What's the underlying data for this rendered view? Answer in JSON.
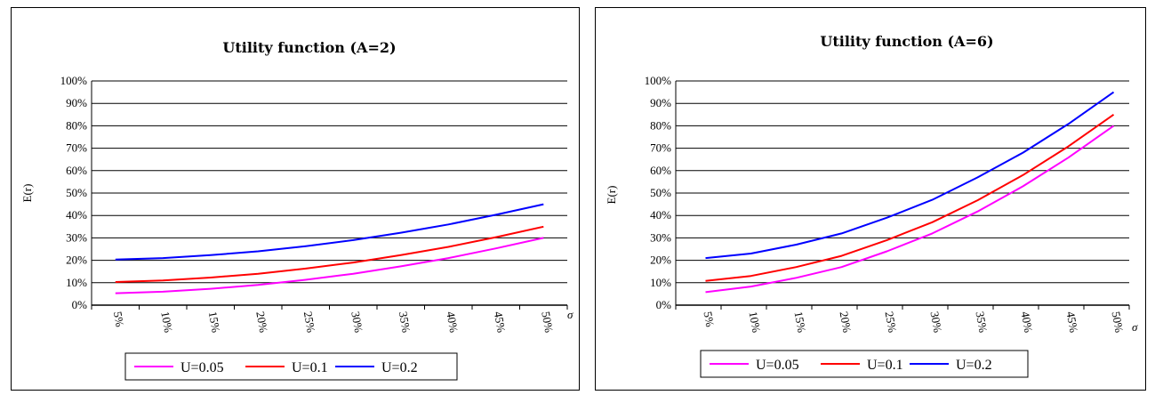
{
  "chart_data": [
    {
      "type": "line",
      "title": "Utility function (A=2)",
      "xlabel": "σ",
      "ylabel": "E(r)",
      "categories": [
        "5%",
        "10%",
        "15%",
        "20%",
        "25%",
        "30%",
        "35%",
        "40%",
        "45%",
        "50%"
      ],
      "yticks": [
        "0%",
        "10%",
        "20%",
        "30%",
        "40%",
        "50%",
        "60%",
        "70%",
        "80%",
        "90%",
        "100%"
      ],
      "ylim": [
        0,
        100
      ],
      "grid": true,
      "legend_position": "bottom",
      "series": [
        {
          "name": "U=0.05",
          "color": "#ff00ff",
          "values": [
            5.3,
            6.0,
            7.3,
            9.0,
            11.3,
            14.0,
            17.3,
            21.0,
            25.3,
            30.0
          ]
        },
        {
          "name": "U=0.1",
          "color": "#ff0000",
          "values": [
            10.3,
            11.0,
            12.3,
            14.0,
            16.3,
            19.0,
            22.3,
            26.0,
            30.3,
            35.0
          ]
        },
        {
          "name": "U=0.2",
          "color": "#0000ff",
          "values": [
            20.3,
            21.0,
            22.3,
            24.0,
            26.3,
            29.0,
            32.3,
            36.0,
            40.3,
            45.0
          ]
        }
      ]
    },
    {
      "type": "line",
      "title": "Utility function (A=6)",
      "xlabel": "σ",
      "ylabel": "E(r)",
      "categories": [
        "5%",
        "10%",
        "15%",
        "20%",
        "25%",
        "30%",
        "35%",
        "40%",
        "45%",
        "50%"
      ],
      "yticks": [
        "0%",
        "10%",
        "20%",
        "30%",
        "40%",
        "50%",
        "60%",
        "70%",
        "80%",
        "90%",
        "100%"
      ],
      "ylim": [
        0,
        100
      ],
      "grid": true,
      "legend_position": "bottom",
      "series": [
        {
          "name": "U=0.05",
          "color": "#ff00ff",
          "values": [
            5.8,
            8.3,
            12.2,
            17.0,
            24.0,
            32.0,
            41.8,
            53.0,
            65.8,
            80.0
          ]
        },
        {
          "name": "U=0.1",
          "color": "#ff0000",
          "values": [
            10.8,
            13.0,
            17.0,
            22.0,
            29.0,
            37.0,
            46.8,
            58.0,
            70.8,
            85.0
          ]
        },
        {
          "name": "U=0.2",
          "color": "#0000ff",
          "values": [
            21.0,
            23.0,
            27.0,
            32.0,
            39.0,
            47.0,
            57.0,
            68.0,
            80.8,
            95.0
          ]
        }
      ]
    }
  ]
}
